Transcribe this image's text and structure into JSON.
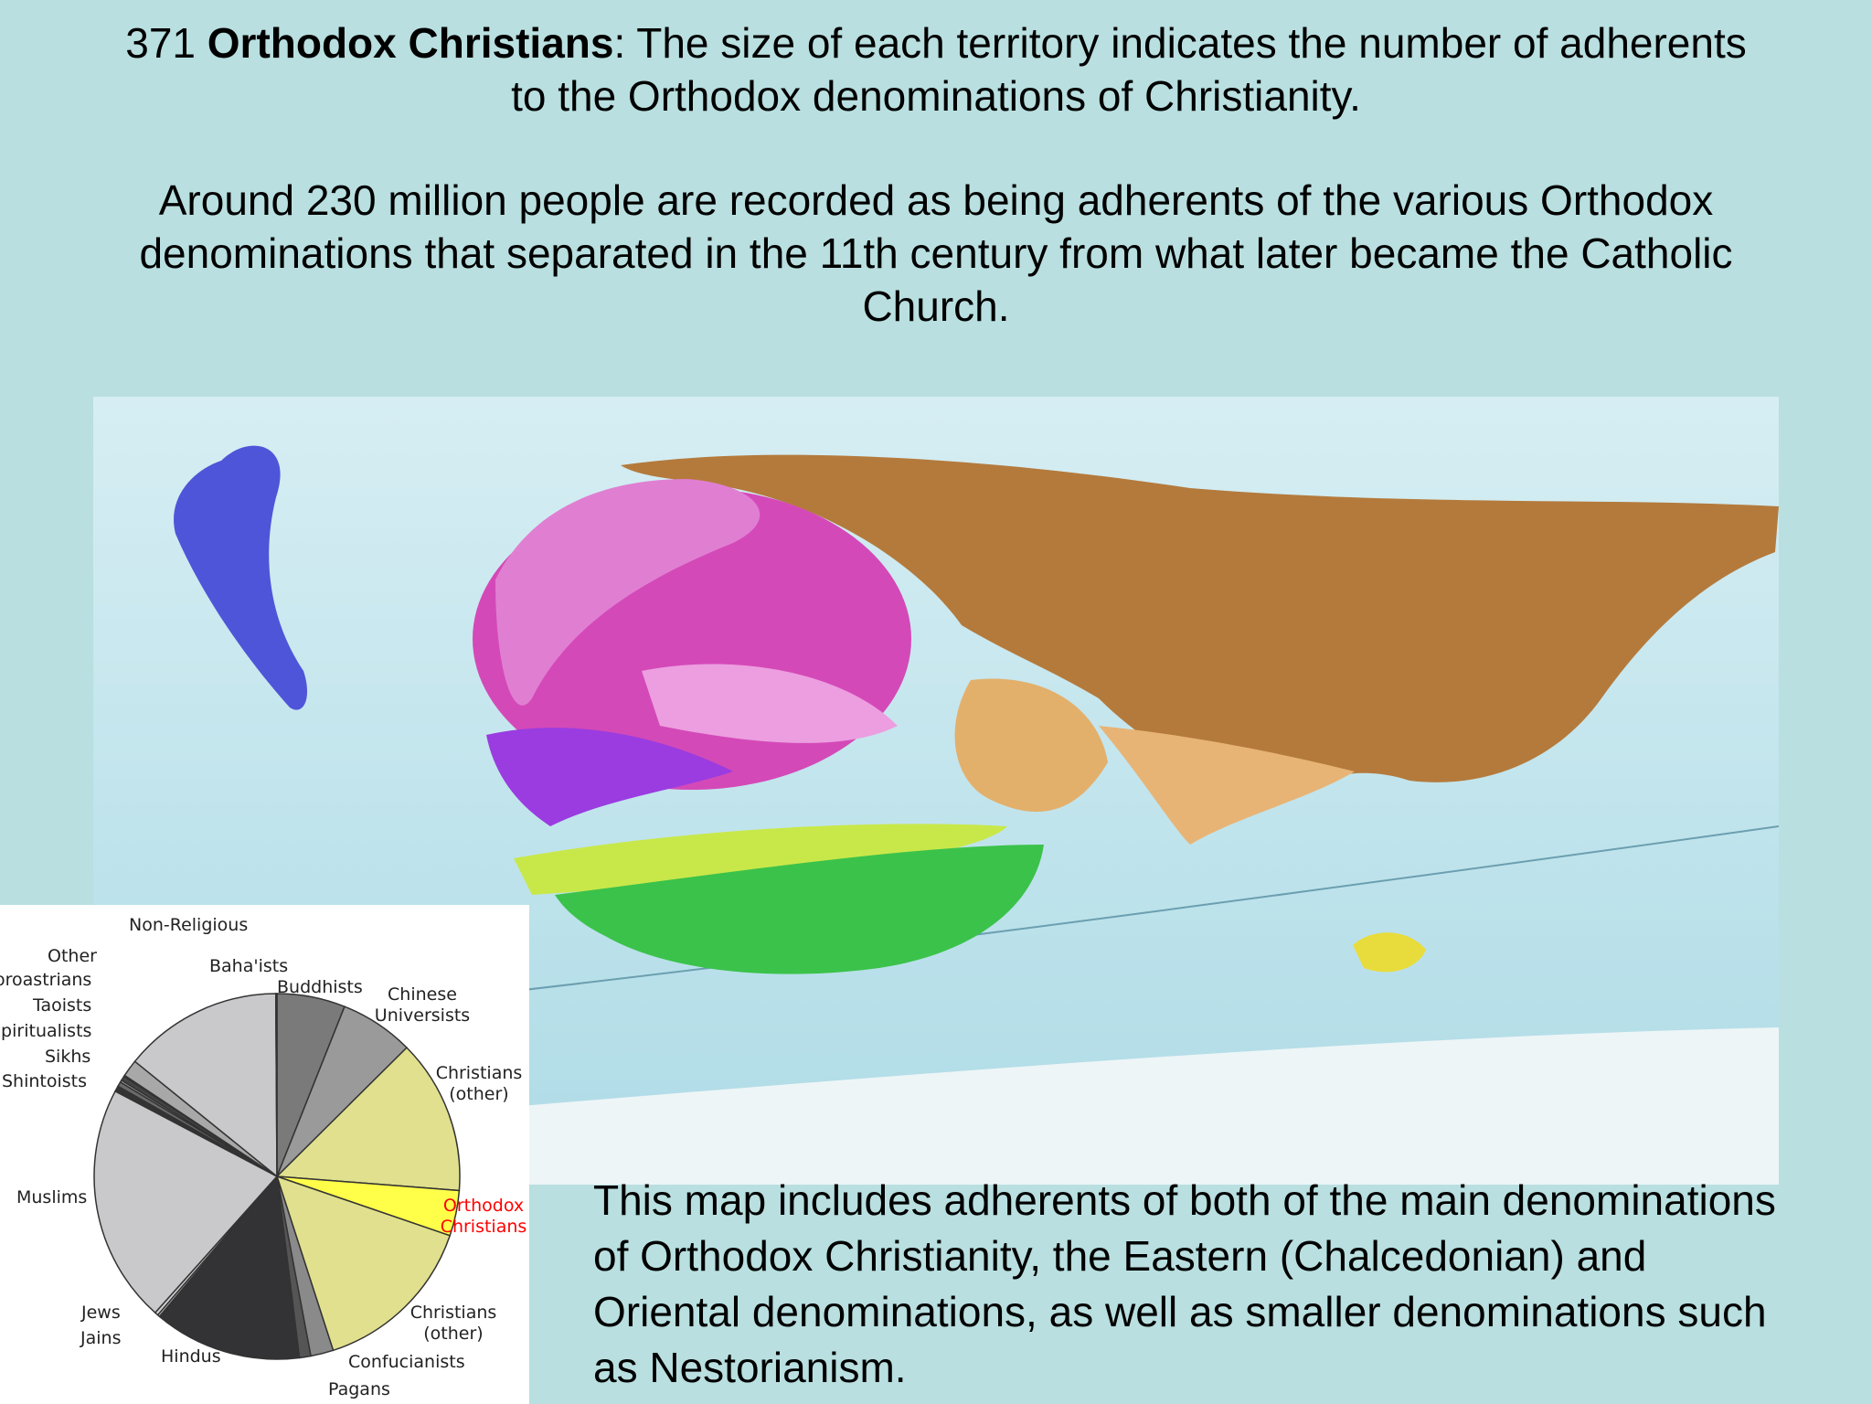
{
  "header": {
    "number": "371",
    "bold": "Orthodox Christians",
    "rest": ": The size of each territory indicates the number of adherents to the Orthodox denominations of Christianity."
  },
  "subtitle": "Around 230 million people are recorded as being adherents of the various Orthodox denominations that separated in the 11th century from what later became the Catholic Church.",
  "note": "This map includes adherents of both of the main denominations of Orthodox Christianity, the Eastern (Chalcedonian) and Oriental denominations, as well as smaller denominations such as Nestorianism.",
  "chart_data": {
    "type": "pie",
    "categories": [
      "Buddhists",
      "Chinese Universists",
      "Christians (other)",
      "Orthodox Christians",
      "Christians (other)",
      "Confucianists",
      "Pagans",
      "Hindus",
      "Jains",
      "Jews",
      "Muslims",
      "Shintoists",
      "Sikhs",
      "Spiritualists",
      "Taoists",
      "Zoroastrians",
      "Other",
      "Non-Religious",
      "Baha'ists"
    ],
    "values": [
      6,
      6.5,
      13.6,
      4,
      14.7,
      2,
      1,
      13,
      0.2,
      0.3,
      21,
      0.5,
      0.4,
      0.2,
      0.4,
      0.1,
      1.5,
      14,
      0.1
    ],
    "colors": [
      "#7a7a7a",
      "#9a9a9a",
      "#e0e08e",
      "#ffff4a",
      "#e0e08e",
      "#8a8a8a",
      "#555555",
      "#333336",
      "#bdbdbd",
      "#d0d0d0",
      "#c9c9cc",
      "#333333",
      "#6a6a6a",
      "#9a9a9a",
      "#444444",
      "#888888",
      "#a8a8a8",
      "#c9c9cc",
      "#888888"
    ],
    "highlight_color": "#ff0000",
    "highlight": 3
  }
}
